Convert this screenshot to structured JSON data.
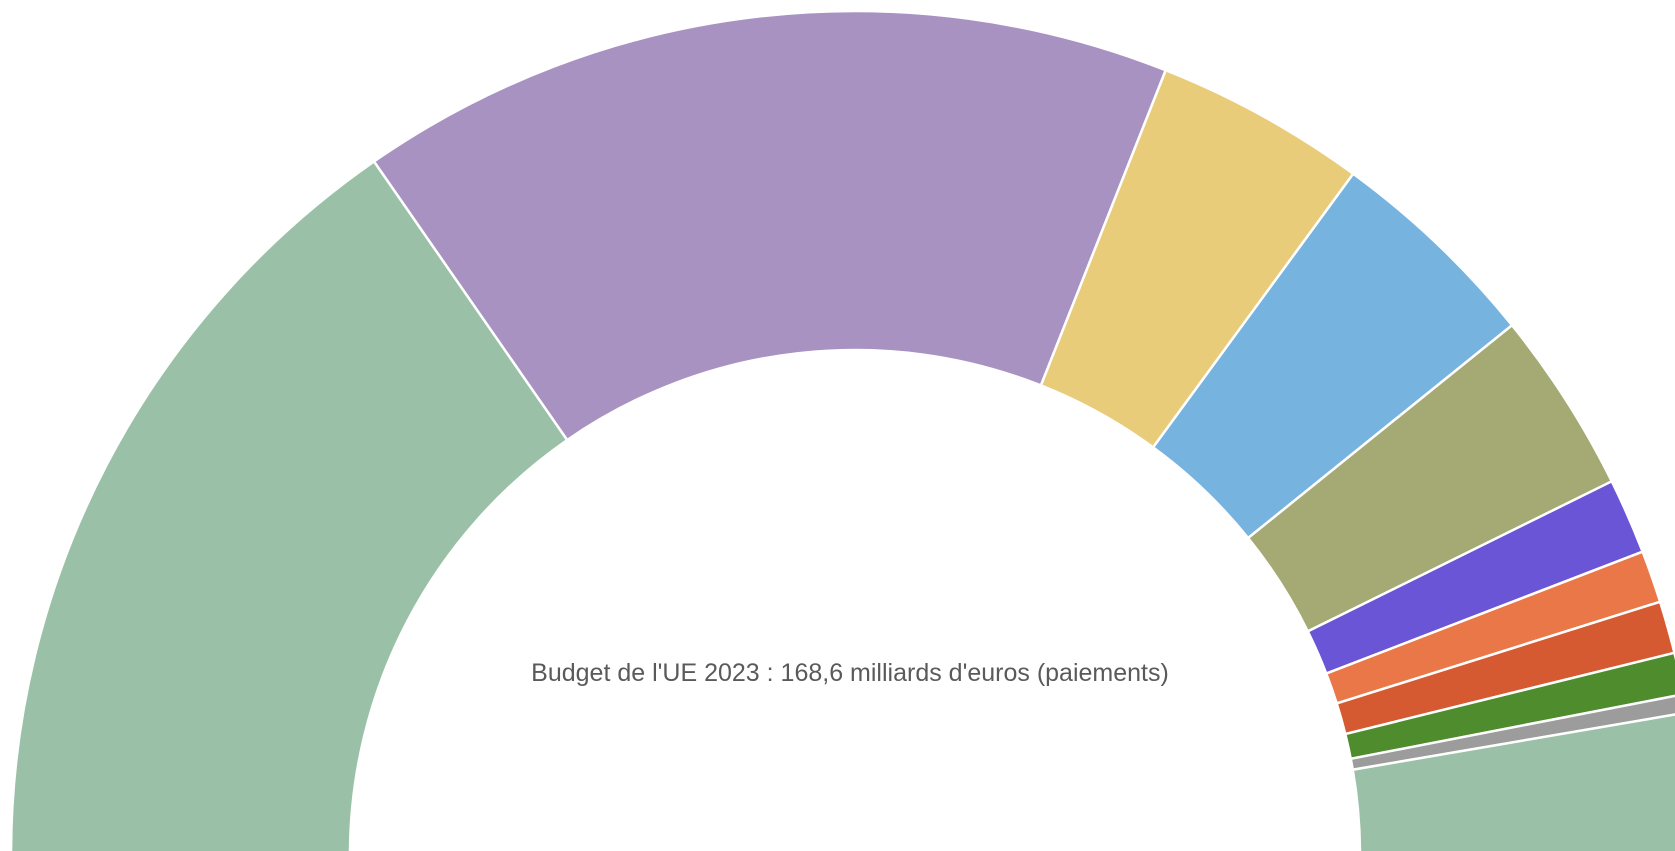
{
  "chart_data": {
    "type": "pie",
    "variant": "half-donut",
    "title": "Budget de l'UE 2023 : 168,6 milliards d'euros (paiements)",
    "unit": "%",
    "total_label": "168,6 milliards d'euros",
    "slices": [
      {
        "value": 30.7,
        "color": "#9ac1a7"
      },
      {
        "value": 31.3,
        "color": "#a792c1"
      },
      {
        "value": 8.1,
        "color": "#e8cc7a"
      },
      {
        "value": 8.3,
        "color": "#76b3df"
      },
      {
        "value": 7.0,
        "color": "#a5a973"
      },
      {
        "value": 2.9,
        "color": "#6a55d6"
      },
      {
        "value": 2.0,
        "color": "#ea7748"
      },
      {
        "value": 2.0,
        "color": "#d65a31"
      },
      {
        "value": 1.6,
        "color": "#4e8c2e"
      },
      {
        "value": 0.7,
        "color": "#9c9c9c"
      },
      {
        "value": 5.4,
        "color": "#9ac1a7"
      }
    ],
    "legend": "none",
    "grid": false
  }
}
